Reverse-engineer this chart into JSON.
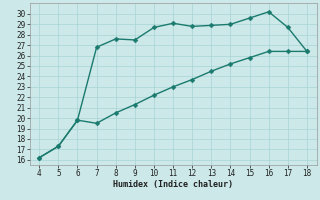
{
  "xlabel": "Humidex (Indice chaleur)",
  "background_color": "#cce8e8",
  "line_color": "#1a7a6e",
  "markersize": 2.5,
  "linewidth": 1.0,
  "x_upper": [
    4,
    5,
    6,
    7,
    8,
    9,
    10,
    11,
    12,
    13,
    14,
    15,
    16,
    17,
    18
  ],
  "y_upper": [
    16.2,
    17.3,
    19.8,
    26.8,
    27.6,
    27.5,
    28.7,
    29.1,
    28.8,
    28.9,
    29.0,
    29.6,
    30.2,
    28.7,
    26.4
  ],
  "x_lower": [
    4,
    5,
    6,
    7,
    8,
    9,
    10,
    11,
    12,
    13,
    14,
    15,
    16,
    17,
    18
  ],
  "y_lower": [
    16.2,
    17.3,
    19.8,
    19.5,
    20.5,
    21.3,
    22.2,
    23.0,
    23.7,
    24.5,
    25.2,
    25.8,
    26.4,
    26.4,
    26.4
  ],
  "xlim": [
    3.5,
    18.5
  ],
  "ylim": [
    15.5,
    31.0
  ],
  "xticks": [
    4,
    5,
    6,
    7,
    8,
    9,
    10,
    11,
    12,
    13,
    14,
    15,
    16,
    17,
    18
  ],
  "yticks": [
    16,
    17,
    18,
    19,
    20,
    21,
    22,
    23,
    24,
    25,
    26,
    27,
    28,
    29,
    30
  ],
  "grid_color": "#a8d4d4",
  "font_color": "#222222",
  "font_family": "monospace",
  "tick_fontsize": 5.5,
  "xlabel_fontsize": 6.0
}
